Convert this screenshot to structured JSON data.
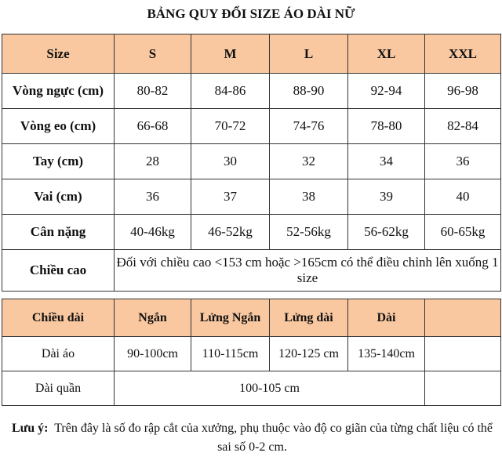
{
  "title": "BẢNG QUY ĐỔI SIZE ÁO DÀI NỮ",
  "size_table": {
    "header": [
      "Size",
      "S",
      "M",
      "L",
      "XL",
      "XXL"
    ],
    "rows": [
      [
        "Vòng ngực (cm)",
        "80-82",
        "84-86",
        "88-90",
        "92-94",
        "96-98"
      ],
      [
        "Vòng eo (cm)",
        "66-68",
        "70-72",
        "74-76",
        "78-80",
        "82-84"
      ],
      [
        "Tay (cm)",
        "28",
        "30",
        "32",
        "34",
        "36"
      ],
      [
        "Vai (cm)",
        "36",
        "37",
        "38",
        "39",
        "40"
      ],
      [
        "Cân nặng",
        "40-46kg",
        "46-52kg",
        "52-56kg",
        "56-62kg",
        "60-65kg"
      ]
    ],
    "height_row": {
      "label": "Chiều cao",
      "text": "Đối với chiều cao <153 cm hoặc >165cm có thể điều chỉnh lên xuống 1 size"
    }
  },
  "length_table": {
    "header": [
      "Chiều dài",
      "Ngắn",
      "Lửng Ngắn",
      "Lửng dài",
      "Dài"
    ],
    "rows": [
      [
        "Dài áo",
        "90-100cm",
        "110-115cm",
        "120-125 cm",
        "135-140cm"
      ],
      [
        "Dài quần",
        "100-105 cm"
      ]
    ]
  },
  "note": {
    "label": "Lưu ý:",
    "text": "Trên đây là số đo rập cắt của xưởng, phụ thuộc vào độ co giãn của từng chất liệu có thể sai số 0-2 cm."
  }
}
